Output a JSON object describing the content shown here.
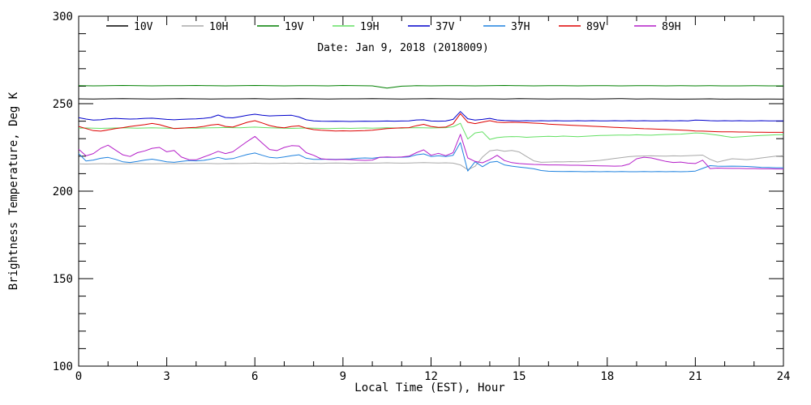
{
  "figure": {
    "date_label": "Date: Jan  9, 2018 (2018009)",
    "x_axis_title": "Local Time (EST), Hour",
    "y_axis_title": "Brightness Temperature, Deg K"
  },
  "chart_data": {
    "type": "line",
    "title": "Date: Jan  9, 2018 (2018009)",
    "xlabel": "Local Time (EST), Hour",
    "ylabel": "Brightness Temperature, Deg K",
    "xlim": [
      0,
      24
    ],
    "ylim": [
      100,
      300
    ],
    "x_major_tick_step": 3,
    "x_minor_tick_step": 1,
    "y_major_tick_step": 50,
    "y_minor_tick_step": 10,
    "x_tick_labels": [
      "0",
      "3",
      "6",
      "9",
      "12",
      "15",
      "18",
      "21",
      "24"
    ],
    "y_tick_labels": [
      "100",
      "150",
      "200",
      "250",
      "300"
    ],
    "grid": false,
    "legend_position": "top-inside",
    "frame_color": "#000000",
    "series": [
      {
        "name": "10V",
        "color": "#000000",
        "x_step": 0.5,
        "values": [
          252.8,
          252.7,
          252.8,
          252.9,
          252.8,
          252.7,
          252.8,
          252.9,
          252.8,
          252.7,
          252.8,
          252.8,
          252.9,
          252.7,
          252.8,
          252.9,
          252.8,
          252.7,
          252.8,
          252.8,
          252.9,
          252.8,
          252.7,
          252.8,
          252.9,
          252.8,
          252.7,
          252.8,
          252.8,
          252.7,
          252.9,
          252.8,
          252.7,
          252.8,
          252.8,
          252.7,
          252.8,
          252.9,
          252.7,
          252.8,
          252.7,
          252.6,
          252.7,
          252.8,
          252.6,
          252.7,
          252.6,
          252.7,
          252.6
        ]
      },
      {
        "name": "10H",
        "color": "#a8a8a8",
        "x_step": 0.25,
        "values": [
          215.6,
          215.5,
          215.6,
          215.7,
          215.6,
          215.7,
          215.6,
          215.7,
          215.8,
          215.7,
          215.6,
          215.7,
          215.8,
          215.7,
          215.8,
          215.7,
          215.8,
          215.9,
          215.8,
          215.7,
          215.8,
          215.9,
          215.8,
          215.9,
          216.0,
          215.9,
          215.8,
          215.9,
          216.0,
          215.9,
          216.0,
          215.9,
          216.0,
          215.9,
          216.0,
          216.1,
          216.0,
          215.9,
          216.0,
          216.1,
          216.0,
          216.1,
          216.2,
          216.1,
          216.0,
          216.1,
          216.2,
          216.3,
          216.2,
          216.1,
          216.2,
          216.0,
          215.0,
          212.3,
          214.2,
          219.5,
          223.0,
          223.6,
          222.8,
          223.3,
          222.4,
          219.8,
          217.3,
          216.5,
          216.6,
          216.8,
          216.7,
          216.9,
          216.8,
          217.0,
          217.2,
          217.6,
          218.1,
          218.7,
          219.2,
          219.7,
          220.0,
          220.1,
          220.2,
          220.1,
          220.0,
          220.2,
          220.1,
          220.3,
          220.4,
          220.6,
          218.2,
          216.6,
          217.6,
          218.5,
          218.3,
          218.0,
          218.4,
          219.0,
          219.5,
          220.0,
          220.3
        ]
      },
      {
        "name": "19V",
        "color": "#007f00",
        "x_step": 0.5,
        "values": [
          260.3,
          260.2,
          260.3,
          260.4,
          260.3,
          260.2,
          260.3,
          260.3,
          260.4,
          260.3,
          260.2,
          260.3,
          260.4,
          260.3,
          260.2,
          260.3,
          260.3,
          260.2,
          260.4,
          260.3,
          260.2,
          258.9,
          260.0,
          260.3,
          260.2,
          260.3,
          260.3,
          260.2,
          260.3,
          260.4,
          260.3,
          260.2,
          260.3,
          260.3,
          260.2,
          260.3,
          260.3,
          260.2,
          260.3,
          260.3,
          260.2,
          260.3,
          260.2,
          260.3,
          260.2,
          260.2,
          260.3,
          260.2,
          260.2
        ]
      },
      {
        "name": "19H",
        "color": "#63e063",
        "x_step": 0.25,
        "values": [
          236.0,
          236.1,
          236.0,
          235.9,
          236.0,
          236.1,
          236.2,
          236.1,
          236.0,
          236.1,
          236.2,
          236.1,
          236.0,
          235.9,
          236.0,
          236.1,
          236.0,
          236.1,
          236.2,
          236.3,
          236.4,
          236.3,
          236.2,
          236.5,
          236.6,
          236.4,
          236.2,
          236.1,
          236.0,
          235.9,
          236.0,
          236.1,
          236.0,
          235.9,
          235.8,
          235.9,
          236.0,
          235.9,
          236.0,
          236.1,
          236.0,
          236.1,
          236.2,
          236.1,
          236.0,
          236.2,
          236.3,
          236.2,
          236.1,
          236.2,
          236.3,
          236.8,
          238.8,
          229.8,
          233.3,
          233.9,
          229.6,
          230.6,
          231.0,
          231.2,
          231.1,
          230.8,
          231.0,
          231.2,
          231.4,
          231.2,
          231.5,
          231.3,
          231.1,
          231.4,
          231.6,
          231.8,
          231.9,
          232.0,
          232.1,
          232.0,
          232.2,
          232.1,
          232.0,
          232.2,
          232.4,
          232.5,
          232.6,
          232.9,
          233.3,
          233.1,
          232.6,
          232.1,
          231.4,
          230.8,
          231.0,
          231.3,
          231.6,
          231.8,
          232.0,
          232.2,
          232.3
        ]
      },
      {
        "name": "37V",
        "color": "#0000cc",
        "x_step": 0.25,
        "values": [
          242.0,
          241.2,
          240.6,
          240.8,
          241.3,
          241.6,
          241.4,
          241.2,
          241.3,
          241.6,
          241.7,
          241.4,
          241.0,
          240.8,
          241.0,
          241.2,
          241.3,
          241.6,
          242.1,
          243.5,
          242.1,
          241.9,
          242.6,
          243.4,
          244.0,
          243.4,
          243.0,
          243.2,
          243.3,
          243.4,
          242.4,
          240.8,
          240.2,
          240.0,
          239.9,
          240.0,
          239.9,
          239.8,
          239.9,
          240.0,
          239.9,
          240.0,
          240.1,
          240.0,
          240.1,
          240.2,
          240.7,
          240.8,
          240.1,
          240.0,
          240.1,
          241.0,
          245.5,
          241.4,
          240.6,
          241.0,
          241.6,
          240.7,
          240.4,
          240.3,
          240.2,
          240.3,
          240.2,
          240.3,
          240.2,
          240.3,
          240.2,
          240.2,
          240.3,
          240.2,
          240.3,
          240.2,
          240.2,
          240.3,
          240.2,
          240.3,
          240.2,
          240.3,
          240.2,
          240.2,
          240.3,
          240.2,
          240.3,
          240.2,
          240.6,
          240.5,
          240.3,
          240.2,
          240.3,
          240.2,
          240.3,
          240.2,
          240.2,
          240.3,
          240.2,
          240.2,
          240.2
        ]
      },
      {
        "name": "37H",
        "color": "#1f82df",
        "x_step": 0.25,
        "values": [
          221.5,
          217.2,
          217.8,
          218.8,
          219.3,
          218.2,
          216.8,
          216.4,
          217.0,
          217.8,
          218.3,
          217.6,
          216.8,
          216.5,
          217.0,
          217.5,
          217.3,
          217.6,
          218.3,
          219.3,
          218.3,
          218.6,
          219.8,
          221.0,
          221.8,
          220.5,
          219.3,
          219.0,
          219.6,
          220.3,
          220.8,
          218.8,
          218.2,
          218.2,
          218.3,
          218.2,
          218.3,
          218.4,
          218.8,
          219.0,
          218.8,
          219.3,
          219.4,
          219.3,
          219.4,
          219.6,
          220.8,
          221.3,
          219.8,
          220.3,
          219.8,
          220.5,
          227.8,
          211.5,
          216.8,
          214.0,
          216.5,
          217.0,
          215.0,
          214.3,
          213.8,
          213.3,
          212.8,
          211.8,
          211.4,
          211.3,
          211.2,
          211.3,
          211.2,
          211.1,
          211.2,
          211.1,
          211.2,
          211.1,
          211.2,
          211.1,
          211.1,
          211.2,
          211.1,
          211.2,
          211.1,
          211.2,
          211.1,
          211.2,
          211.5,
          213.0,
          214.6,
          214.3,
          214.2,
          214.3,
          214.2,
          214.1,
          213.9,
          213.6,
          213.5,
          213.4,
          213.4
        ]
      },
      {
        "name": "89V",
        "color": "#dd0000",
        "x_step": 0.25,
        "values": [
          237.0,
          235.8,
          234.6,
          234.3,
          235.0,
          235.8,
          236.3,
          237.0,
          237.5,
          238.0,
          238.7,
          238.0,
          236.8,
          235.8,
          236.0,
          236.3,
          236.5,
          237.0,
          237.8,
          238.2,
          237.0,
          236.6,
          238.0,
          239.4,
          240.3,
          239.0,
          237.5,
          236.6,
          236.2,
          237.0,
          237.3,
          236.0,
          235.2,
          234.8,
          234.6,
          234.4,
          234.5,
          234.4,
          234.5,
          234.6,
          234.8,
          235.3,
          235.8,
          236.0,
          236.2,
          236.3,
          237.4,
          238.2,
          237.0,
          236.5,
          236.6,
          238.5,
          244.3,
          239.4,
          238.6,
          239.5,
          240.3,
          239.4,
          239.2,
          239.4,
          239.3,
          239.1,
          238.9,
          238.7,
          238.3,
          238.1,
          237.9,
          237.7,
          237.5,
          237.3,
          237.1,
          236.9,
          236.7,
          236.5,
          236.3,
          236.1,
          235.9,
          235.7,
          235.6,
          235.4,
          235.3,
          235.1,
          234.9,
          234.7,
          234.4,
          234.3,
          234.1,
          234.0,
          233.9,
          233.9,
          233.8,
          233.8,
          233.7,
          233.7,
          233.6,
          233.6,
          233.6
        ]
      },
      {
        "name": "89H",
        "color": "#b41ec8",
        "x_step": 0.25,
        "values": [
          224.0,
          220.2,
          221.5,
          224.5,
          226.3,
          223.5,
          220.8,
          219.8,
          222.0,
          223.0,
          224.5,
          225.0,
          222.5,
          223.3,
          219.5,
          218.0,
          217.9,
          219.5,
          221.0,
          222.8,
          221.5,
          222.5,
          225.5,
          228.5,
          231.3,
          227.5,
          223.8,
          223.2,
          225.0,
          226.0,
          225.8,
          222.0,
          220.5,
          218.5,
          218.2,
          218.0,
          218.2,
          218.0,
          217.8,
          217.6,
          217.8,
          219.3,
          219.6,
          219.4,
          219.6,
          220.0,
          222.0,
          223.6,
          220.5,
          221.6,
          220.3,
          222.0,
          232.5,
          219.0,
          217.0,
          216.2,
          218.0,
          220.5,
          217.5,
          216.3,
          215.8,
          215.5,
          215.3,
          215.2,
          215.0,
          215.0,
          214.9,
          214.8,
          214.8,
          214.7,
          214.6,
          214.5,
          214.4,
          214.3,
          214.4,
          215.5,
          218.5,
          219.4,
          219.0,
          218.0,
          217.0,
          216.4,
          216.6,
          216.0,
          215.8,
          217.7,
          212.9,
          213.2,
          213.1,
          213.0,
          213.0,
          212.9,
          212.9,
          212.8,
          212.8,
          212.7,
          212.7
        ]
      }
    ],
    "legend_entries": [
      "10V",
      "10H",
      "19V",
      "19H",
      "37V",
      "37H",
      "89V",
      "89H"
    ]
  }
}
